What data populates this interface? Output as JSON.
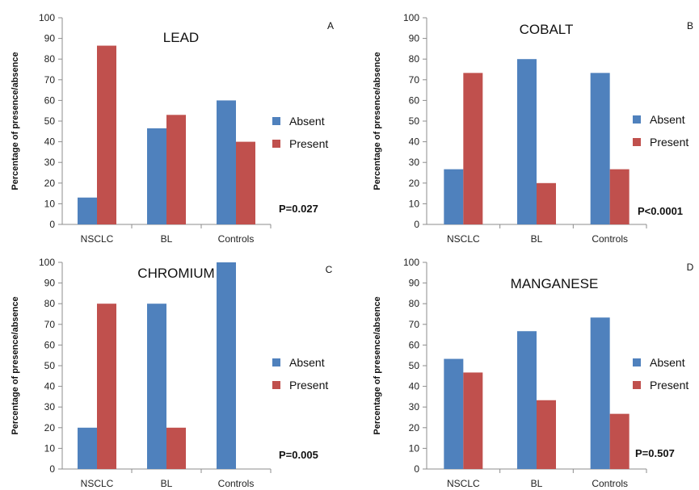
{
  "chart_data": [
    {
      "type": "bar",
      "panel": "A",
      "title": "LEAD",
      "ylabel": "Percentage of presence/absence",
      "categories": [
        "NSCLC",
        "BL",
        "Controls"
      ],
      "series": [
        {
          "name": "Absent",
          "values": [
            13,
            46.5,
            60
          ]
        },
        {
          "name": "Present",
          "values": [
            86.5,
            53,
            40
          ]
        }
      ],
      "yticks": [
        0,
        10,
        20,
        30,
        40,
        50,
        60,
        70,
        80,
        90,
        100
      ],
      "ylim": [
        0,
        100
      ],
      "annotation": "P=0.027",
      "legend": "right",
      "grid": false
    },
    {
      "type": "bar",
      "panel": "B",
      "title": "COBALT",
      "ylabel": "Percentage of presence/absence",
      "categories": [
        "NSCLC",
        "BL",
        "Controls"
      ],
      "series": [
        {
          "name": "Absent",
          "values": [
            26.7,
            80,
            73.3
          ]
        },
        {
          "name": "Present",
          "values": [
            73.3,
            20,
            26.7
          ]
        }
      ],
      "yticks": [
        0,
        10,
        20,
        30,
        40,
        50,
        60,
        70,
        80,
        90,
        100
      ],
      "ylim": [
        0,
        100
      ],
      "annotation": "P<0.0001",
      "legend": "right",
      "grid": false
    },
    {
      "type": "bar",
      "panel": "C",
      "title": "CHROMIUM",
      "ylabel": "Percentage of presence/absence",
      "categories": [
        "NSCLC",
        "BL",
        "Controls"
      ],
      "series": [
        {
          "name": "Absent",
          "values": [
            20,
            80,
            100
          ]
        },
        {
          "name": "Present",
          "values": [
            80,
            20,
            0
          ]
        }
      ],
      "yticks": [
        0,
        10,
        20,
        30,
        40,
        50,
        60,
        70,
        80,
        90,
        100
      ],
      "ylim": [
        0,
        100
      ],
      "annotation": "P=0.005",
      "legend": "right",
      "grid": false
    },
    {
      "type": "bar",
      "panel": "D",
      "title": "MANGANESE",
      "ylabel": "Percentage of presence/absence",
      "categories": [
        "NSCLC",
        "BL",
        "Controls"
      ],
      "series": [
        {
          "name": "Absent",
          "values": [
            53.3,
            66.7,
            73.3
          ]
        },
        {
          "name": "Present",
          "values": [
            46.7,
            33.3,
            26.7
          ]
        }
      ],
      "yticks": [
        0,
        10,
        20,
        30,
        40,
        50,
        60,
        70,
        80,
        90,
        100
      ],
      "ylim": [
        0,
        100
      ],
      "annotation": "P=0.507",
      "legend": "right",
      "grid": false
    }
  ],
  "colors": {
    "Absent": "#4f81bd",
    "Present": "#c0504d",
    "axis": "#8c8c8c"
  }
}
